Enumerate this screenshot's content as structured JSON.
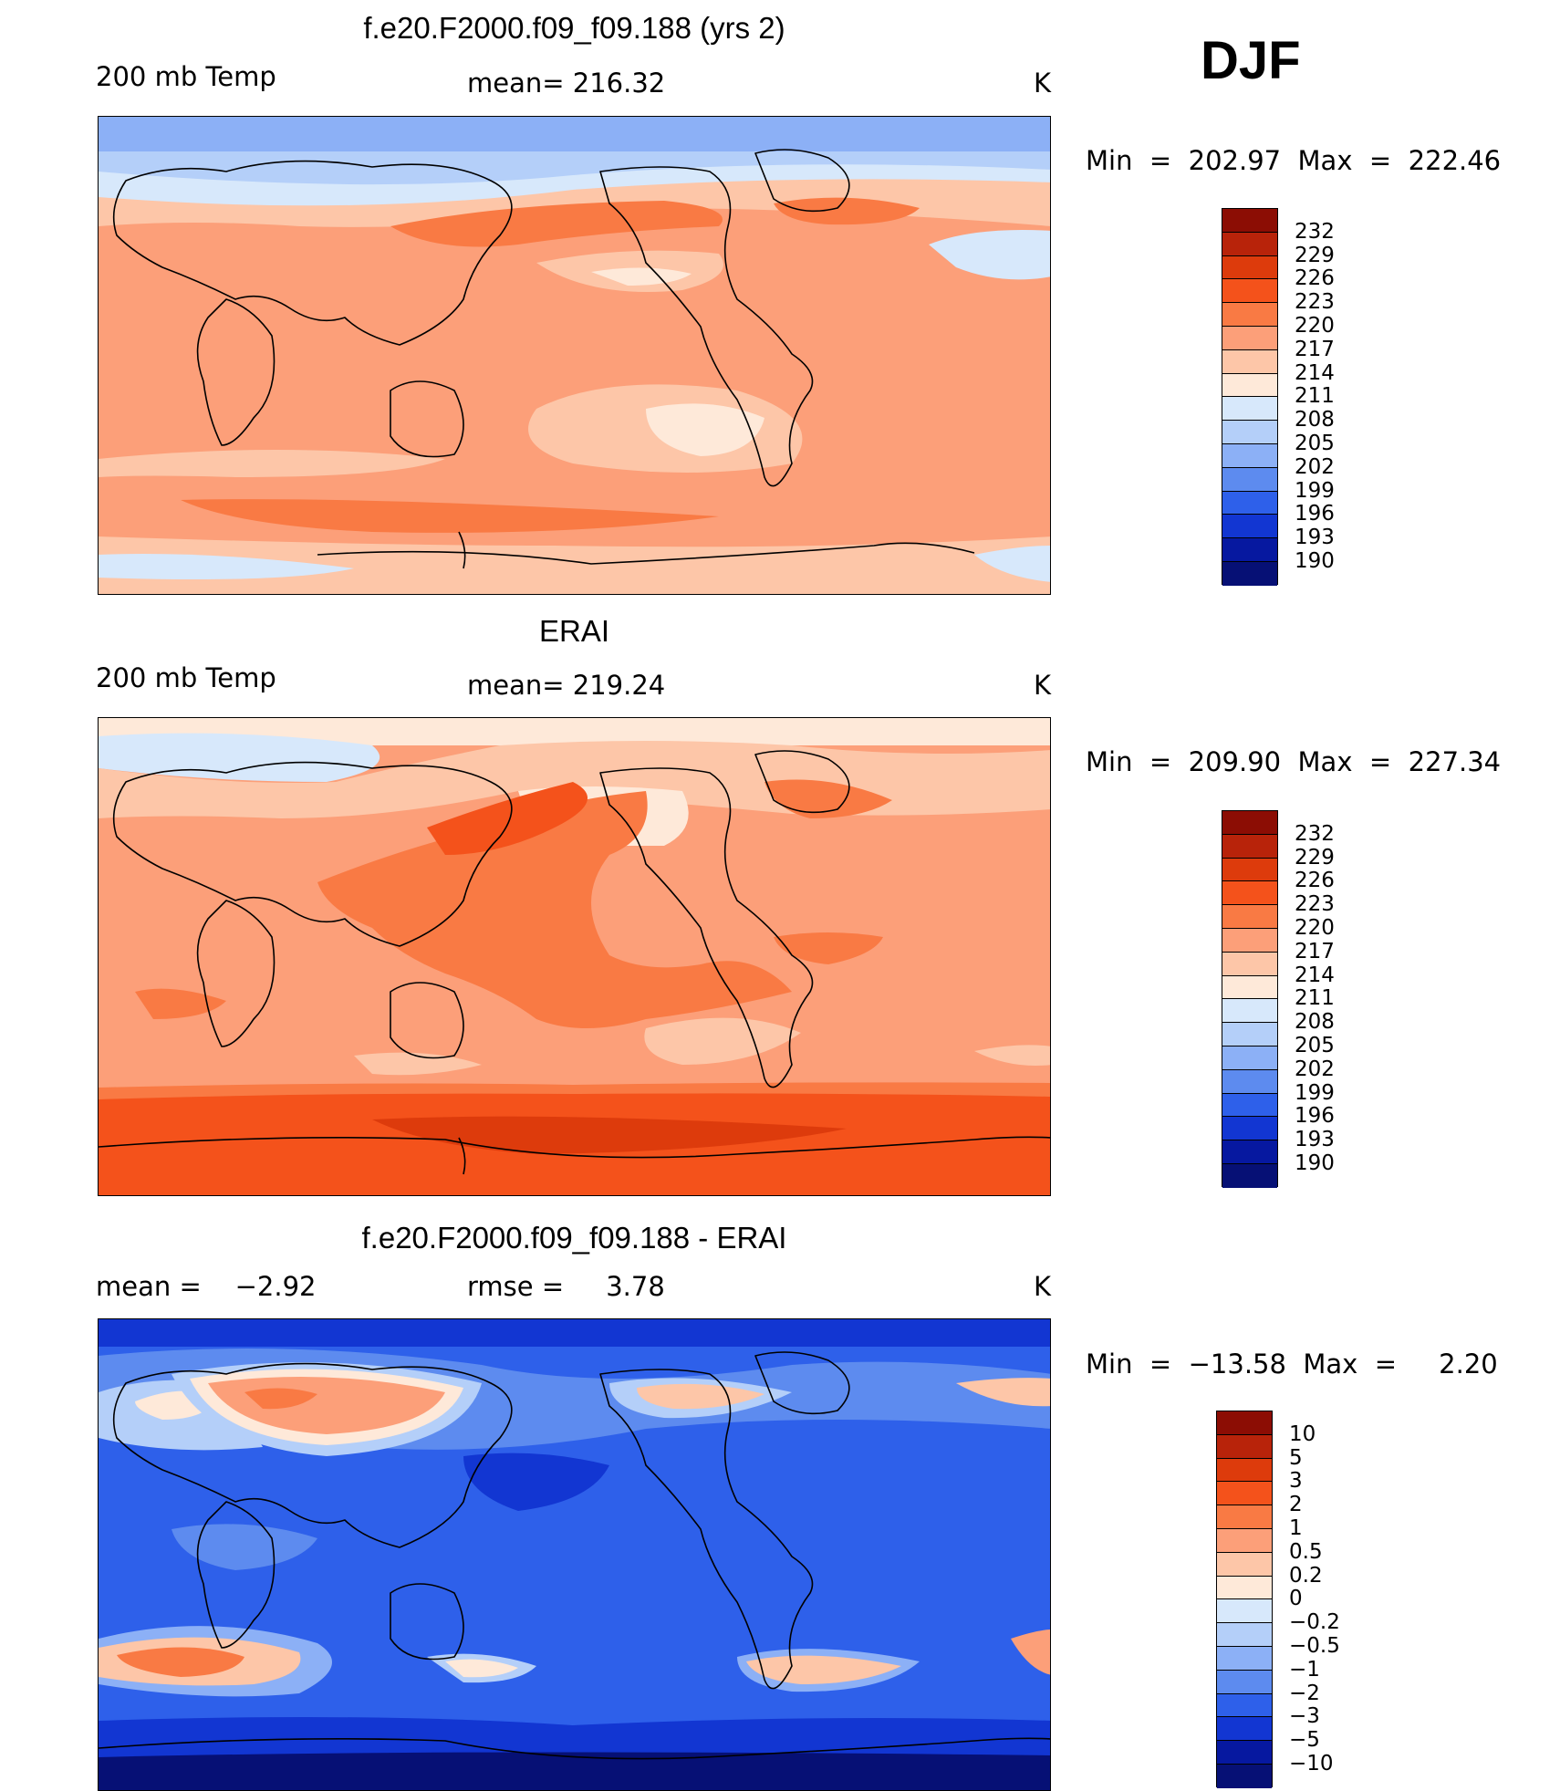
{
  "season": "DJF",
  "panels": [
    {
      "id": "model",
      "title": "f.e20.F2000.f09_f09.188 (yrs 2)",
      "left_label": "200 mb Temp",
      "center_label": "mean= 216.32",
      "units": "K",
      "minmax": "Min  =  202.97  Max  =  222.46",
      "colorbar": {
        "labels": [
          "232",
          "229",
          "226",
          "223",
          "220",
          "217",
          "214",
          "211",
          "208",
          "205",
          "202",
          "199",
          "196",
          "193",
          "190"
        ],
        "colors": [
          "#8c0d04",
          "#b8230a",
          "#dd3b0c",
          "#f4521b",
          "#f97a44",
          "#fc9f79",
          "#fdc6a8",
          "#fee9d9",
          "#d7e8fb",
          "#b4cff9",
          "#8cb0f6",
          "#5d8bef",
          "#2e60ea",
          "#1236d2",
          "#0618a0",
          "#061075"
        ]
      }
    },
    {
      "id": "obs",
      "title": "ERAI",
      "left_label": "200 mb Temp",
      "center_label": "mean= 219.24",
      "units": "K",
      "minmax": "Min  =  209.90  Max  =  227.34",
      "colorbar": {
        "labels": [
          "232",
          "229",
          "226",
          "223",
          "220",
          "217",
          "214",
          "211",
          "208",
          "205",
          "202",
          "199",
          "196",
          "193",
          "190"
        ],
        "colors": [
          "#8c0d04",
          "#b8230a",
          "#dd3b0c",
          "#f4521b",
          "#f97a44",
          "#fc9f79",
          "#fdc6a8",
          "#fee9d9",
          "#d7e8fb",
          "#b4cff9",
          "#8cb0f6",
          "#5d8bef",
          "#2e60ea",
          "#1236d2",
          "#0618a0",
          "#061075"
        ]
      }
    },
    {
      "id": "diff",
      "title": "f.e20.F2000.f09_f09.188 - ERAI",
      "left_label": "mean =    −2.92",
      "center_label": "rmse =     3.78",
      "units": "K",
      "minmax": "Min  =  −13.58  Max  =     2.20",
      "colorbar": {
        "labels": [
          "10",
          "5",
          "3",
          "2",
          "1",
          "0.5",
          "0.2",
          "0",
          "−0.2",
          "−0.5",
          "−1",
          "−2",
          "−3",
          "−5",
          "−10"
        ],
        "colors": [
          "#8c0d04",
          "#b8230a",
          "#dd3b0c",
          "#f4521b",
          "#f97a44",
          "#fc9f79",
          "#fdc6a8",
          "#fee9d9",
          "#d7e8fb",
          "#b4cff9",
          "#8cb0f6",
          "#5d8bef",
          "#2e60ea",
          "#1236d2",
          "#0618a0",
          "#061075"
        ]
      }
    }
  ],
  "chart_data": [
    {
      "type": "heatmap",
      "title": "f.e20.F2000.f09_f09.188 (yrs 2)",
      "variable": "200 mb Temp",
      "units": "K",
      "mean": 216.32,
      "min": 202.97,
      "max": 222.46,
      "contour_levels": [
        190,
        193,
        196,
        199,
        202,
        205,
        208,
        211,
        214,
        217,
        220,
        223,
        226,
        229,
        232
      ]
    },
    {
      "type": "heatmap",
      "title": "ERAI",
      "variable": "200 mb Temp",
      "units": "K",
      "mean": 219.24,
      "min": 209.9,
      "max": 227.34,
      "contour_levels": [
        190,
        193,
        196,
        199,
        202,
        205,
        208,
        211,
        214,
        217,
        220,
        223,
        226,
        229,
        232
      ]
    },
    {
      "type": "heatmap",
      "title": "f.e20.F2000.f09_f09.188 - ERAI",
      "units": "K",
      "mean": -2.92,
      "rmse": 3.78,
      "min": -13.58,
      "max": 2.2,
      "contour_levels": [
        -10,
        -5,
        -3,
        -2,
        -1,
        -0.5,
        -0.2,
        0,
        0.2,
        0.5,
        1,
        2,
        3,
        5,
        10
      ]
    }
  ]
}
